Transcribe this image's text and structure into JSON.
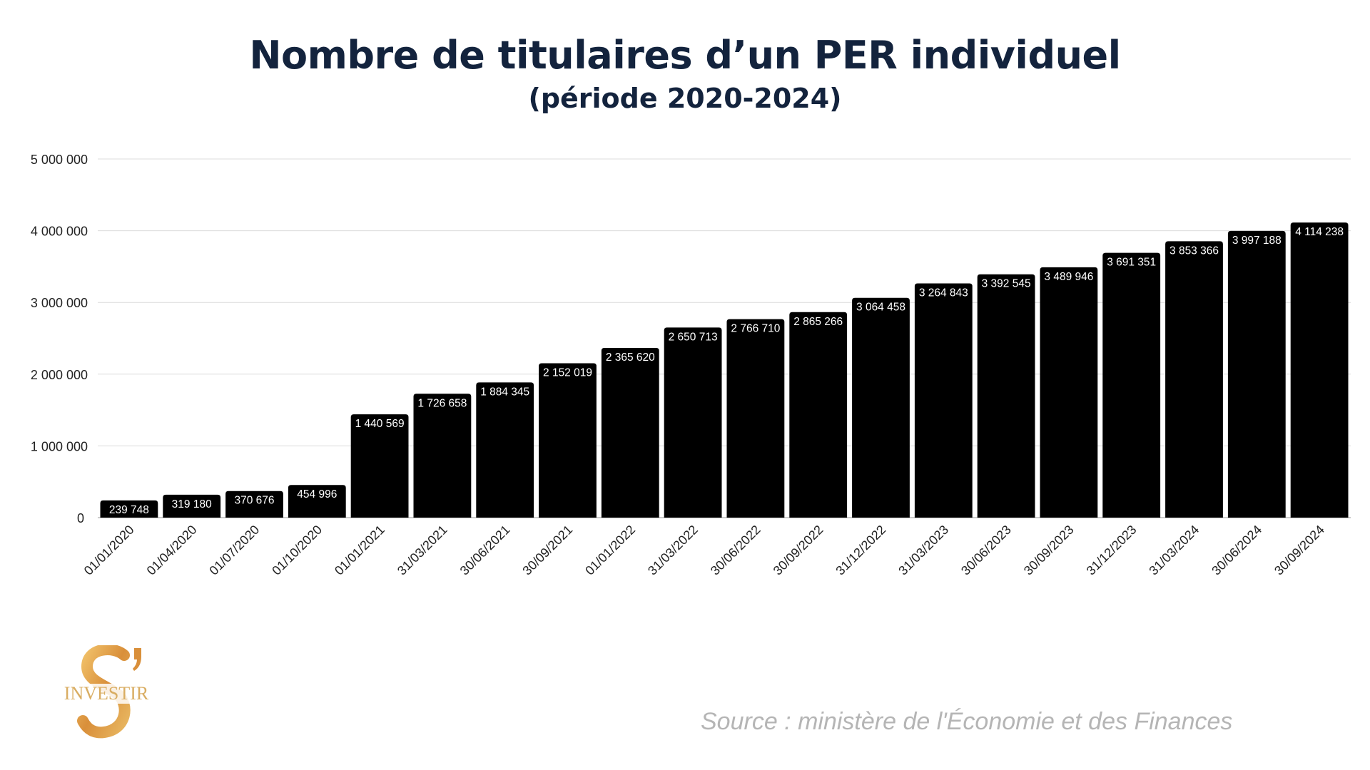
{
  "chart_data": {
    "type": "bar",
    "title": "Nombre de titulaires d’un PER individuel",
    "subtitle": "(période 2020-2024)",
    "xlabel": "",
    "ylabel": "",
    "ylim": [
      0,
      5000000
    ],
    "yticks": [
      0,
      1000000,
      2000000,
      3000000,
      4000000,
      5000000
    ],
    "ytick_labels": [
      "0",
      "1 000 000",
      "2 000 000",
      "3 000 000",
      "4 000 000",
      "5 000 000"
    ],
    "grid": true,
    "categories": [
      "01/01/2020",
      "01/04/2020",
      "01/07/2020",
      "01/10/2020",
      "01/01/2021",
      "31/03/2021",
      "30/06/2021",
      "30/09/2021",
      "01/01/2022",
      "31/03/2022",
      "30/06/2022",
      "30/09/2022",
      "31/12/2022",
      "31/03/2023",
      "30/06/2023",
      "30/09/2023",
      "31/12/2023",
      "31/03/2024",
      "30/06/2024",
      "30/09/2024"
    ],
    "values": [
      239748,
      319180,
      370676,
      454996,
      1440569,
      1726658,
      1884345,
      2152019,
      2365620,
      2650713,
      2766710,
      2865266,
      3064458,
      3264843,
      3392545,
      3489946,
      3691351,
      3853366,
      3997188,
      4114238
    ],
    "value_labels": [
      "239 748",
      "319 180",
      "370 676",
      "454 996",
      "1 440 569",
      "1 726 658",
      "1 884 345",
      "2 152 019",
      "2 365 620",
      "2 650 713",
      "2 766 710",
      "2 865 266",
      "3 064 458",
      "3 264 843",
      "3 392 545",
      "3 489 946",
      "3 691 351",
      "3 853 366",
      "3 997 188",
      "4 114 238"
    ],
    "bar_color": "#000000",
    "title_color": "#13233d"
  },
  "footer": {
    "source": "Source : ministère de l'Économie et des Finances",
    "logo_text": "INVESTIR",
    "logo_letter": "S’"
  }
}
